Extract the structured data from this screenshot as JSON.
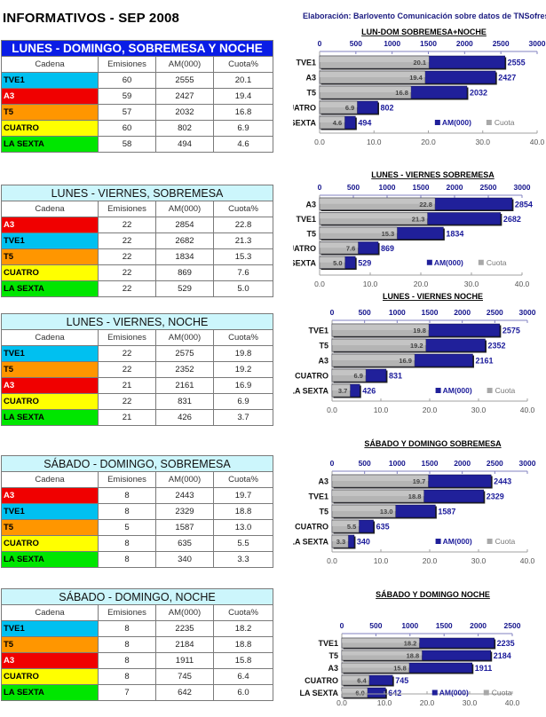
{
  "page": {
    "title": "INFORMATIVOS - SEP 2008",
    "credit": "Elaboración: Barlovento Comunicación sobre datos de TNSofres"
  },
  "colors": {
    "TVE1": "#00c0f0",
    "A3": "#f00000",
    "T5": "#ff9600",
    "CUATRO": "#ffff00",
    "LA SEXTA": "#00e600",
    "am_bar": "#20209a",
    "cuota_bar": "#b4b4b4",
    "axis_top_text": "#14148c",
    "axis_bottom_text": "#555555",
    "main_table_header": "#0a1de6",
    "table_header": "#ccf6fc"
  },
  "table_columns": [
    "Cadena",
    "Emisiones",
    "AM(000)",
    "Cuota%"
  ],
  "sections": [
    {
      "table_title": "LUNES - DOMINGO, SOBREMESA Y NOCHE",
      "rows": [
        {
          "cadena": "TVE1",
          "emisiones": "60",
          "am": "2555",
          "cuota": "20.1"
        },
        {
          "cadena": "A3",
          "emisiones": "59",
          "am": "2427",
          "cuota": "19.4"
        },
        {
          "cadena": "T5",
          "emisiones": "57",
          "am": "2032",
          "cuota": "16.8"
        },
        {
          "cadena": "CUATRO",
          "emisiones": "60",
          "am": "802",
          "cuota": "6.9"
        },
        {
          "cadena": "LA SEXTA",
          "emisiones": "58",
          "am": "494",
          "cuota": "4.6"
        }
      ]
    },
    {
      "table_title": "LUNES - VIERNES, SOBREMESA",
      "rows": [
        {
          "cadena": "A3",
          "emisiones": "22",
          "am": "2854",
          "cuota": "22.8"
        },
        {
          "cadena": "TVE1",
          "emisiones": "22",
          "am": "2682",
          "cuota": "21.3"
        },
        {
          "cadena": "T5",
          "emisiones": "22",
          "am": "1834",
          "cuota": "15.3"
        },
        {
          "cadena": "CUATRO",
          "emisiones": "22",
          "am": "869",
          "cuota": "7.6"
        },
        {
          "cadena": "LA SEXTA",
          "emisiones": "22",
          "am": "529",
          "cuota": "5.0"
        }
      ]
    },
    {
      "table_title": "LUNES - VIERNES, NOCHE",
      "rows": [
        {
          "cadena": "TVE1",
          "emisiones": "22",
          "am": "2575",
          "cuota": "19.8"
        },
        {
          "cadena": "T5",
          "emisiones": "22",
          "am": "2352",
          "cuota": "19.2"
        },
        {
          "cadena": "A3",
          "emisiones": "21",
          "am": "2161",
          "cuota": "16.9"
        },
        {
          "cadena": "CUATRO",
          "emisiones": "22",
          "am": "831",
          "cuota": "6.9"
        },
        {
          "cadena": "LA SEXTA",
          "emisiones": "21",
          "am": "426",
          "cuota": "3.7"
        }
      ]
    },
    {
      "table_title": "SÁBADO - DOMINGO, SOBREMESA",
      "rows": [
        {
          "cadena": "A3",
          "emisiones": "8",
          "am": "2443",
          "cuota": "19.7"
        },
        {
          "cadena": "TVE1",
          "emisiones": "8",
          "am": "2329",
          "cuota": "18.8"
        },
        {
          "cadena": "T5",
          "emisiones": "5",
          "am": "1587",
          "cuota": "13.0"
        },
        {
          "cadena": "CUATRO",
          "emisiones": "8",
          "am": "635",
          "cuota": "5.5"
        },
        {
          "cadena": "LA SEXTA",
          "emisiones": "8",
          "am": "340",
          "cuota": "3.3"
        }
      ]
    },
    {
      "table_title": "SÁBADO - DOMINGO, NOCHE",
      "rows": [
        {
          "cadena": "TVE1",
          "emisiones": "8",
          "am": "2235",
          "cuota": "18.2"
        },
        {
          "cadena": "T5",
          "emisiones": "8",
          "am": "2184",
          "cuota": "18.8"
        },
        {
          "cadena": "A3",
          "emisiones": "8",
          "am": "1911",
          "cuota": "15.8"
        },
        {
          "cadena": "CUATRO",
          "emisiones": "8",
          "am": "745",
          "cuota": "6.4"
        },
        {
          "cadena": "LA SEXTA",
          "emisiones": "7",
          "am": "642",
          "cuota": "6.0"
        }
      ]
    }
  ],
  "chart_data": [
    {
      "type": "bar",
      "orientation": "horizontal",
      "title": "LUN-DOM SOBREMESA+NOCHE",
      "categories": [
        "TVE1",
        "A3",
        "T5",
        "CUATRO",
        "LA SEXTA"
      ],
      "series": [
        {
          "name": "AM(000)",
          "axis": "top",
          "values": [
            2555,
            2427,
            2032,
            802,
            494
          ]
        },
        {
          "name": "Cuota",
          "axis": "bottom",
          "values": [
            20.1,
            19.4,
            16.8,
            6.9,
            4.6
          ]
        }
      ],
      "top_axis": {
        "range": [
          0,
          3000
        ],
        "ticks": [
          "0",
          "500",
          "1000",
          "1500",
          "2000",
          "2500",
          "3000"
        ]
      },
      "bottom_axis": {
        "range": [
          0,
          40
        ],
        "ticks": [
          "0.0",
          "10.0",
          "20.0",
          "30.0",
          "40.0"
        ]
      },
      "legend": [
        "AM(000)",
        "Cuota"
      ],
      "legend_position": "bottom-right"
    },
    {
      "type": "bar",
      "orientation": "horizontal",
      "title": "LUNES - VIERNES SOBREMESA",
      "categories": [
        "A3",
        "TVE1",
        "T5",
        "CUATRO",
        "LA SEXTA"
      ],
      "series": [
        {
          "name": "AM(000)",
          "axis": "top",
          "values": [
            2854,
            2682,
            1834,
            869,
            529
          ]
        },
        {
          "name": "Cuota",
          "axis": "bottom",
          "values": [
            22.8,
            21.3,
            15.3,
            7.6,
            5.0
          ]
        }
      ],
      "top_axis": {
        "range": [
          0,
          3000
        ],
        "ticks": [
          "0",
          "500",
          "1000",
          "1500",
          "2000",
          "2500",
          "3000"
        ]
      },
      "bottom_axis": {
        "range": [
          0,
          40
        ],
        "ticks": [
          "0.0",
          "10.0",
          "20.0",
          "30.0",
          "40.0"
        ]
      },
      "legend": [
        "AM(000)",
        "Cuota"
      ],
      "legend_position": "bottom-right"
    },
    {
      "type": "bar",
      "orientation": "horizontal",
      "title": "LUNES - VIERNES  NOCHE",
      "categories": [
        "TVE1",
        "T5",
        "A3",
        "CUATRO",
        "LA SEXTA"
      ],
      "series": [
        {
          "name": "AM(000)",
          "axis": "top",
          "values": [
            2575,
            2352,
            2161,
            831,
            426
          ]
        },
        {
          "name": "Cuota",
          "axis": "bottom",
          "values": [
            19.8,
            19.2,
            16.9,
            6.9,
            3.7
          ]
        }
      ],
      "top_axis": {
        "range": [
          0,
          3000
        ],
        "ticks": [
          "0",
          "500",
          "1000",
          "1500",
          "2000",
          "2500",
          "3000"
        ]
      },
      "bottom_axis": {
        "range": [
          0,
          40
        ],
        "ticks": [
          "0.0",
          "10.0",
          "20.0",
          "30.0",
          "40.0"
        ]
      },
      "legend": [
        "AM(000)",
        "Cuota"
      ],
      "legend_position": "bottom-right"
    },
    {
      "type": "bar",
      "orientation": "horizontal",
      "title": "SÁBADO Y DOMINGO SOBREMESA",
      "categories": [
        "A3",
        "TVE1",
        "T5",
        "CUATRO",
        "LA SEXTA"
      ],
      "series": [
        {
          "name": "AM(000)",
          "axis": "top",
          "values": [
            2443,
            2329,
            1587,
            635,
            340
          ]
        },
        {
          "name": "Cuota",
          "axis": "bottom",
          "values": [
            19.7,
            18.8,
            13.0,
            5.5,
            3.3
          ]
        }
      ],
      "top_axis": {
        "range": [
          0,
          3000
        ],
        "ticks": [
          "0",
          "500",
          "1000",
          "1500",
          "2000",
          "2500",
          "3000"
        ]
      },
      "bottom_axis": {
        "range": [
          0,
          40
        ],
        "ticks": [
          "0.0",
          "10.0",
          "20.0",
          "30.0",
          "40.0"
        ]
      },
      "legend": [
        "AM(000)",
        "Cuota"
      ],
      "legend_position": "bottom-right"
    },
    {
      "type": "bar",
      "orientation": "horizontal",
      "title": "SÁBADO Y DOMINGO  NOCHE",
      "categories": [
        "TVE1",
        "T5",
        "A3",
        "CUATRO",
        "LA SEXTA"
      ],
      "series": [
        {
          "name": "AM(000)",
          "axis": "top",
          "values": [
            2235,
            2184,
            1911,
            745,
            642
          ]
        },
        {
          "name": "Cuota",
          "axis": "bottom",
          "values": [
            18.2,
            18.8,
            15.8,
            6.4,
            6.0
          ]
        }
      ],
      "top_axis": {
        "range": [
          0,
          2500
        ],
        "ticks": [
          "0",
          "500",
          "1000",
          "1500",
          "2000",
          "2500"
        ]
      },
      "bottom_axis": {
        "range": [
          0,
          40
        ],
        "ticks": [
          "0.0",
          "10.0",
          "20.0",
          "30.0",
          "40.0"
        ]
      },
      "legend": [
        "AM(000)",
        "Cuota"
      ],
      "legend_position": "bottom-right"
    }
  ]
}
